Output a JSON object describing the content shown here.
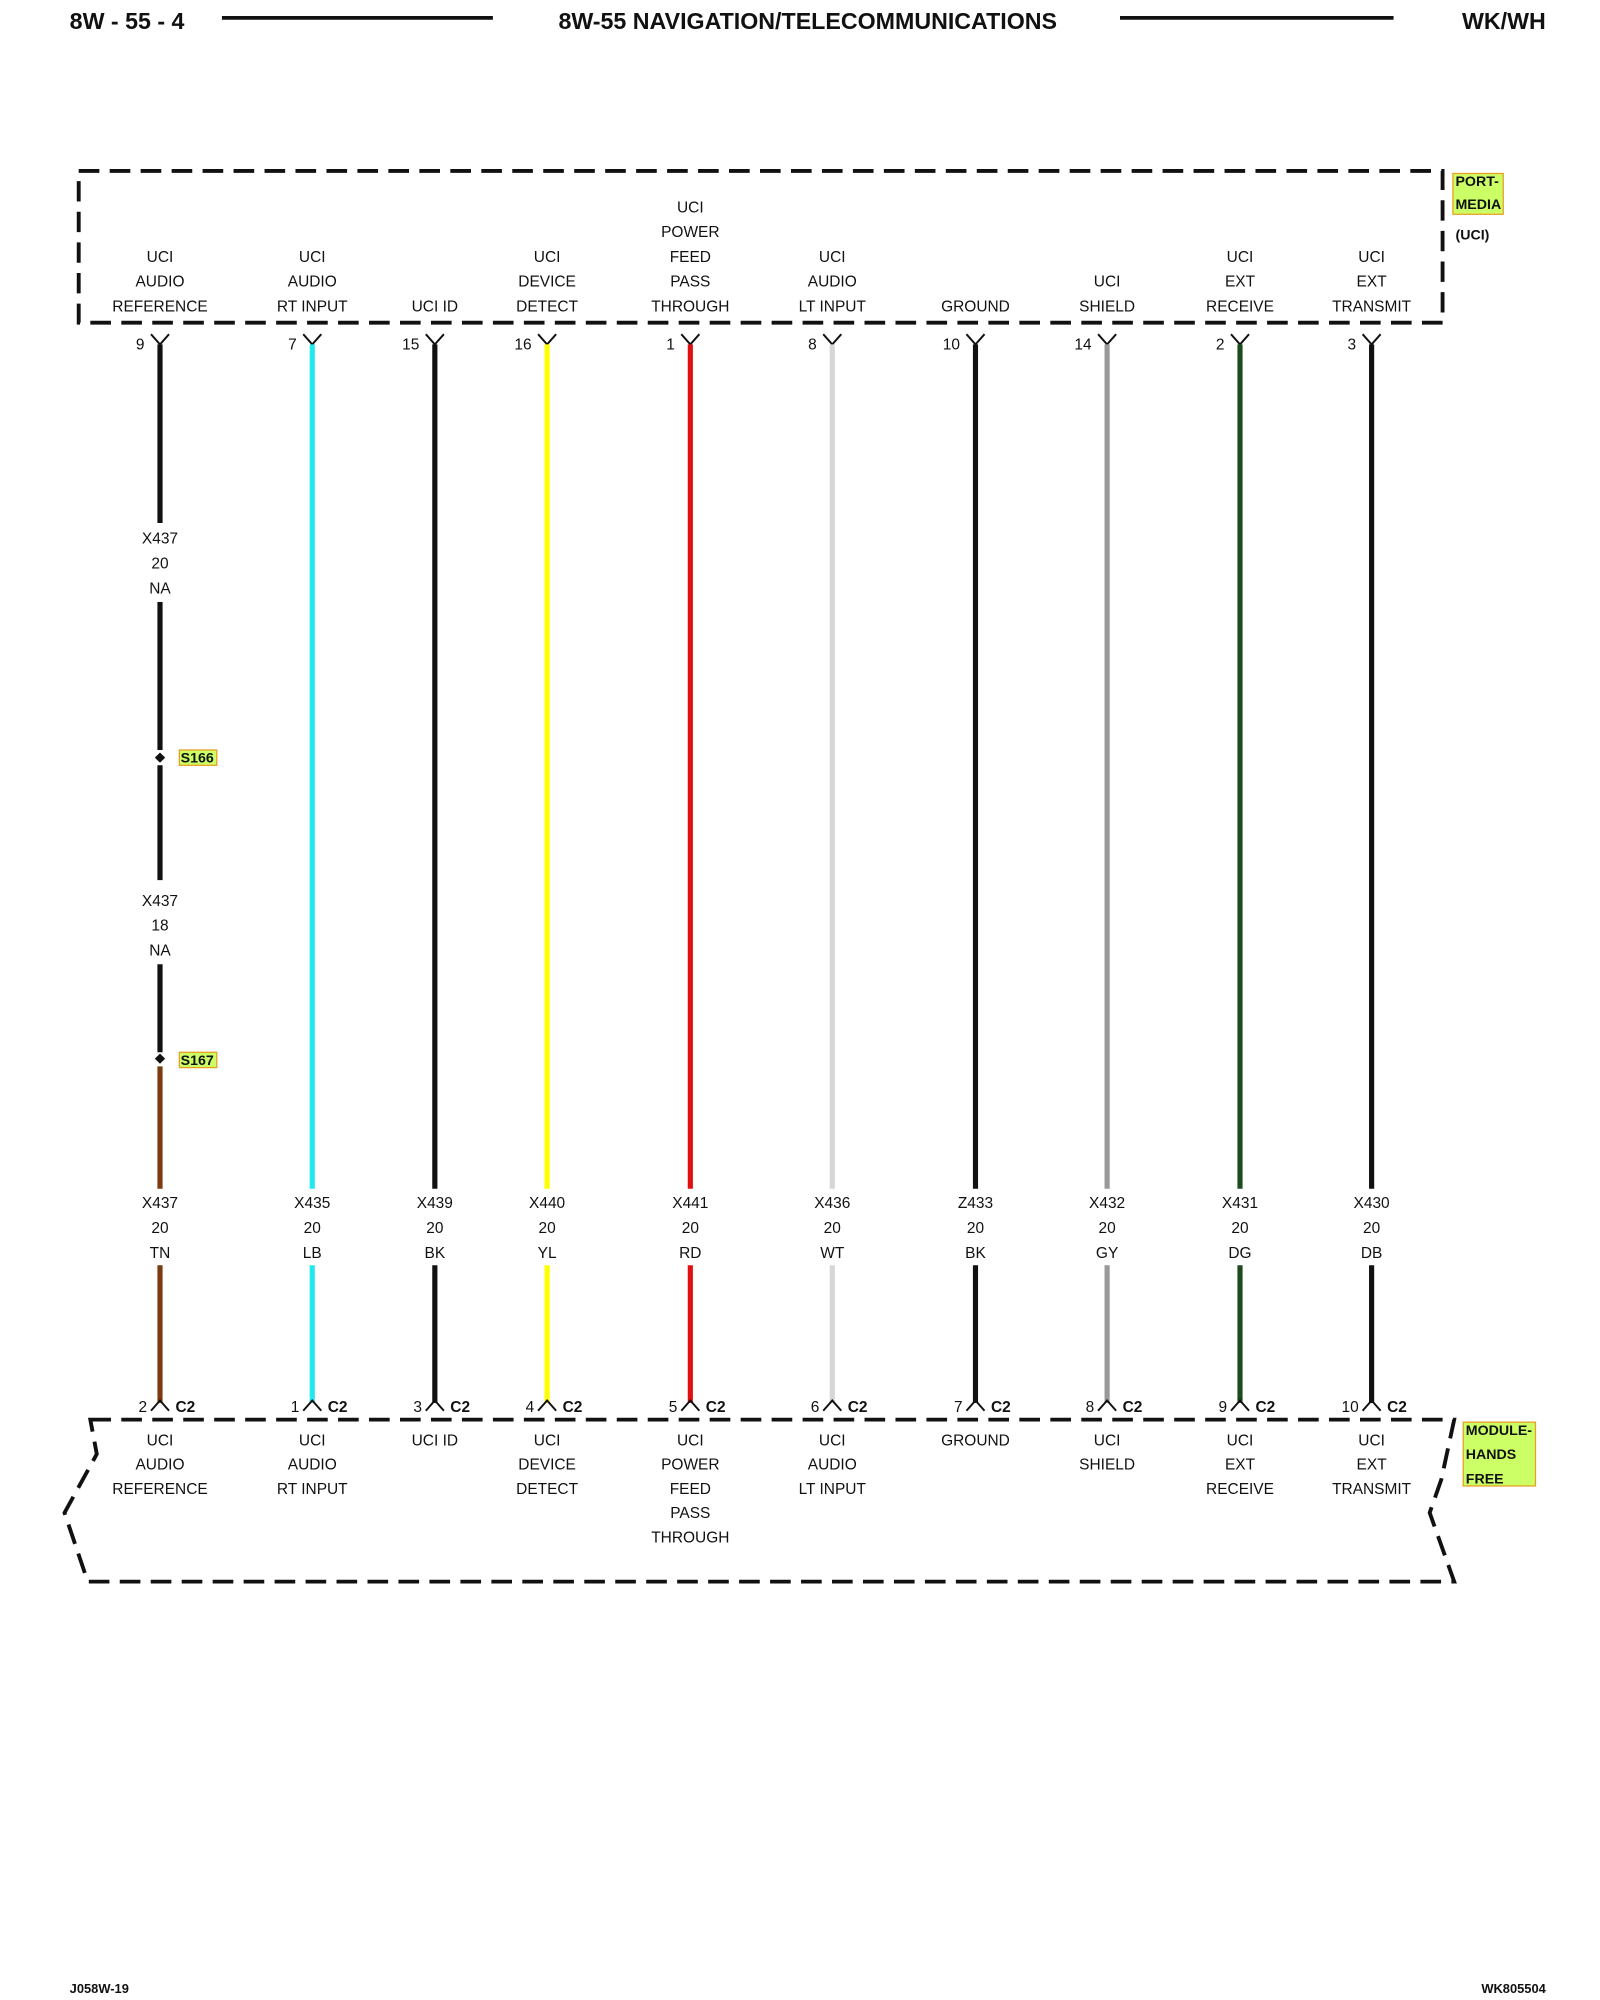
{
  "header": {
    "page": "8W - 55 - 4",
    "title": "8W-55 NAVIGATION/TELECOMMUNICATIONS",
    "model": "WK/WH"
  },
  "top_connector": {
    "label": [
      "PORT-",
      "MEDIA"
    ],
    "sub": "(UCI)"
  },
  "bottom_connector": {
    "label": [
      "MODULE-",
      "HANDS",
      "FREE"
    ]
  },
  "wires": [
    {
      "top_pin": 9,
      "top_label": [
        "UCI",
        "AUDIO",
        "REFERENCE"
      ],
      "circuit": "X437",
      "gauge": 20,
      "color_code": "TN",
      "stroke": "#7a3b10",
      "bottom_pin": 2,
      "bottom_connector": "C2",
      "bottom_label": [
        "UCI",
        "AUDIO",
        "REFERENCE"
      ],
      "upper_circuits": [
        {
          "circuit": "X437",
          "gauge": 20,
          "color_code": "NA",
          "splice": "S166"
        },
        {
          "circuit": "X437",
          "gauge": 18,
          "color_code": "NA",
          "splice": "S167"
        }
      ]
    },
    {
      "top_pin": 7,
      "top_label": [
        "UCI",
        "AUDIO",
        "RT INPUT"
      ],
      "circuit": "X435",
      "gauge": 20,
      "color_code": "LB",
      "stroke": "#22e8f0",
      "bottom_pin": 1,
      "bottom_connector": "C2",
      "bottom_label": [
        "UCI",
        "AUDIO",
        "RT INPUT"
      ]
    },
    {
      "top_pin": 15,
      "top_label": [
        "UCI ID"
      ],
      "circuit": "X439",
      "gauge": 20,
      "color_code": "BK",
      "stroke": "#111111",
      "bottom_pin": 3,
      "bottom_connector": "C2",
      "bottom_label": [
        "UCI ID"
      ]
    },
    {
      "top_pin": 16,
      "top_label": [
        "UCI",
        "DEVICE",
        "DETECT"
      ],
      "circuit": "X440",
      "gauge": 20,
      "color_code": "YL",
      "stroke": "#ffff00",
      "bottom_pin": 4,
      "bottom_connector": "C2",
      "bottom_label": [
        "UCI",
        "DEVICE",
        "DETECT"
      ]
    },
    {
      "top_pin": 1,
      "top_label": [
        "UCI",
        "POWER",
        "FEED",
        "PASS",
        "THROUGH"
      ],
      "circuit": "X441",
      "gauge": 20,
      "color_code": "RD",
      "stroke": "#e01010",
      "bottom_pin": 5,
      "bottom_connector": "C2",
      "bottom_label": [
        "UCI",
        "POWER",
        "FEED",
        "PASS",
        "THROUGH"
      ]
    },
    {
      "top_pin": 8,
      "top_label": [
        "UCI",
        "AUDIO",
        "LT INPUT"
      ],
      "circuit": "X436",
      "gauge": 20,
      "color_code": "WT",
      "stroke": "#d6d6d6",
      "bottom_pin": 6,
      "bottom_connector": "C2",
      "bottom_label": [
        "UCI",
        "AUDIO",
        "LT INPUT"
      ]
    },
    {
      "top_pin": 10,
      "top_label": [
        "GROUND"
      ],
      "circuit": "Z433",
      "gauge": 20,
      "color_code": "BK",
      "stroke": "#111111",
      "bottom_pin": 7,
      "bottom_connector": "C2",
      "bottom_label": [
        "GROUND"
      ]
    },
    {
      "top_pin": 14,
      "top_label": [
        "UCI",
        "SHIELD"
      ],
      "circuit": "X432",
      "gauge": 20,
      "color_code": "GY",
      "stroke": "#999999",
      "bottom_pin": 8,
      "bottom_connector": "C2",
      "bottom_label": [
        "UCI",
        "SHIELD"
      ]
    },
    {
      "top_pin": 2,
      "top_label": [
        "UCI",
        "EXT",
        "RECEIVE"
      ],
      "circuit": "X431",
      "gauge": 20,
      "color_code": "DG",
      "stroke": "#1e4a1e",
      "bottom_pin": 9,
      "bottom_connector": "C2",
      "bottom_label": [
        "UCI",
        "EXT",
        "RECEIVE"
      ]
    },
    {
      "top_pin": 3,
      "top_label": [
        "UCI",
        "EXT",
        "TRANSMIT"
      ],
      "circuit": "X430",
      "gauge": 20,
      "color_code": "DB",
      "stroke": "#111111",
      "bottom_pin": 10,
      "bottom_connector": "C2",
      "bottom_label": [
        "UCI",
        "EXT",
        "TRANSMIT"
      ]
    }
  ],
  "footer": {
    "left": "J058W-19",
    "right": "WK805504"
  }
}
